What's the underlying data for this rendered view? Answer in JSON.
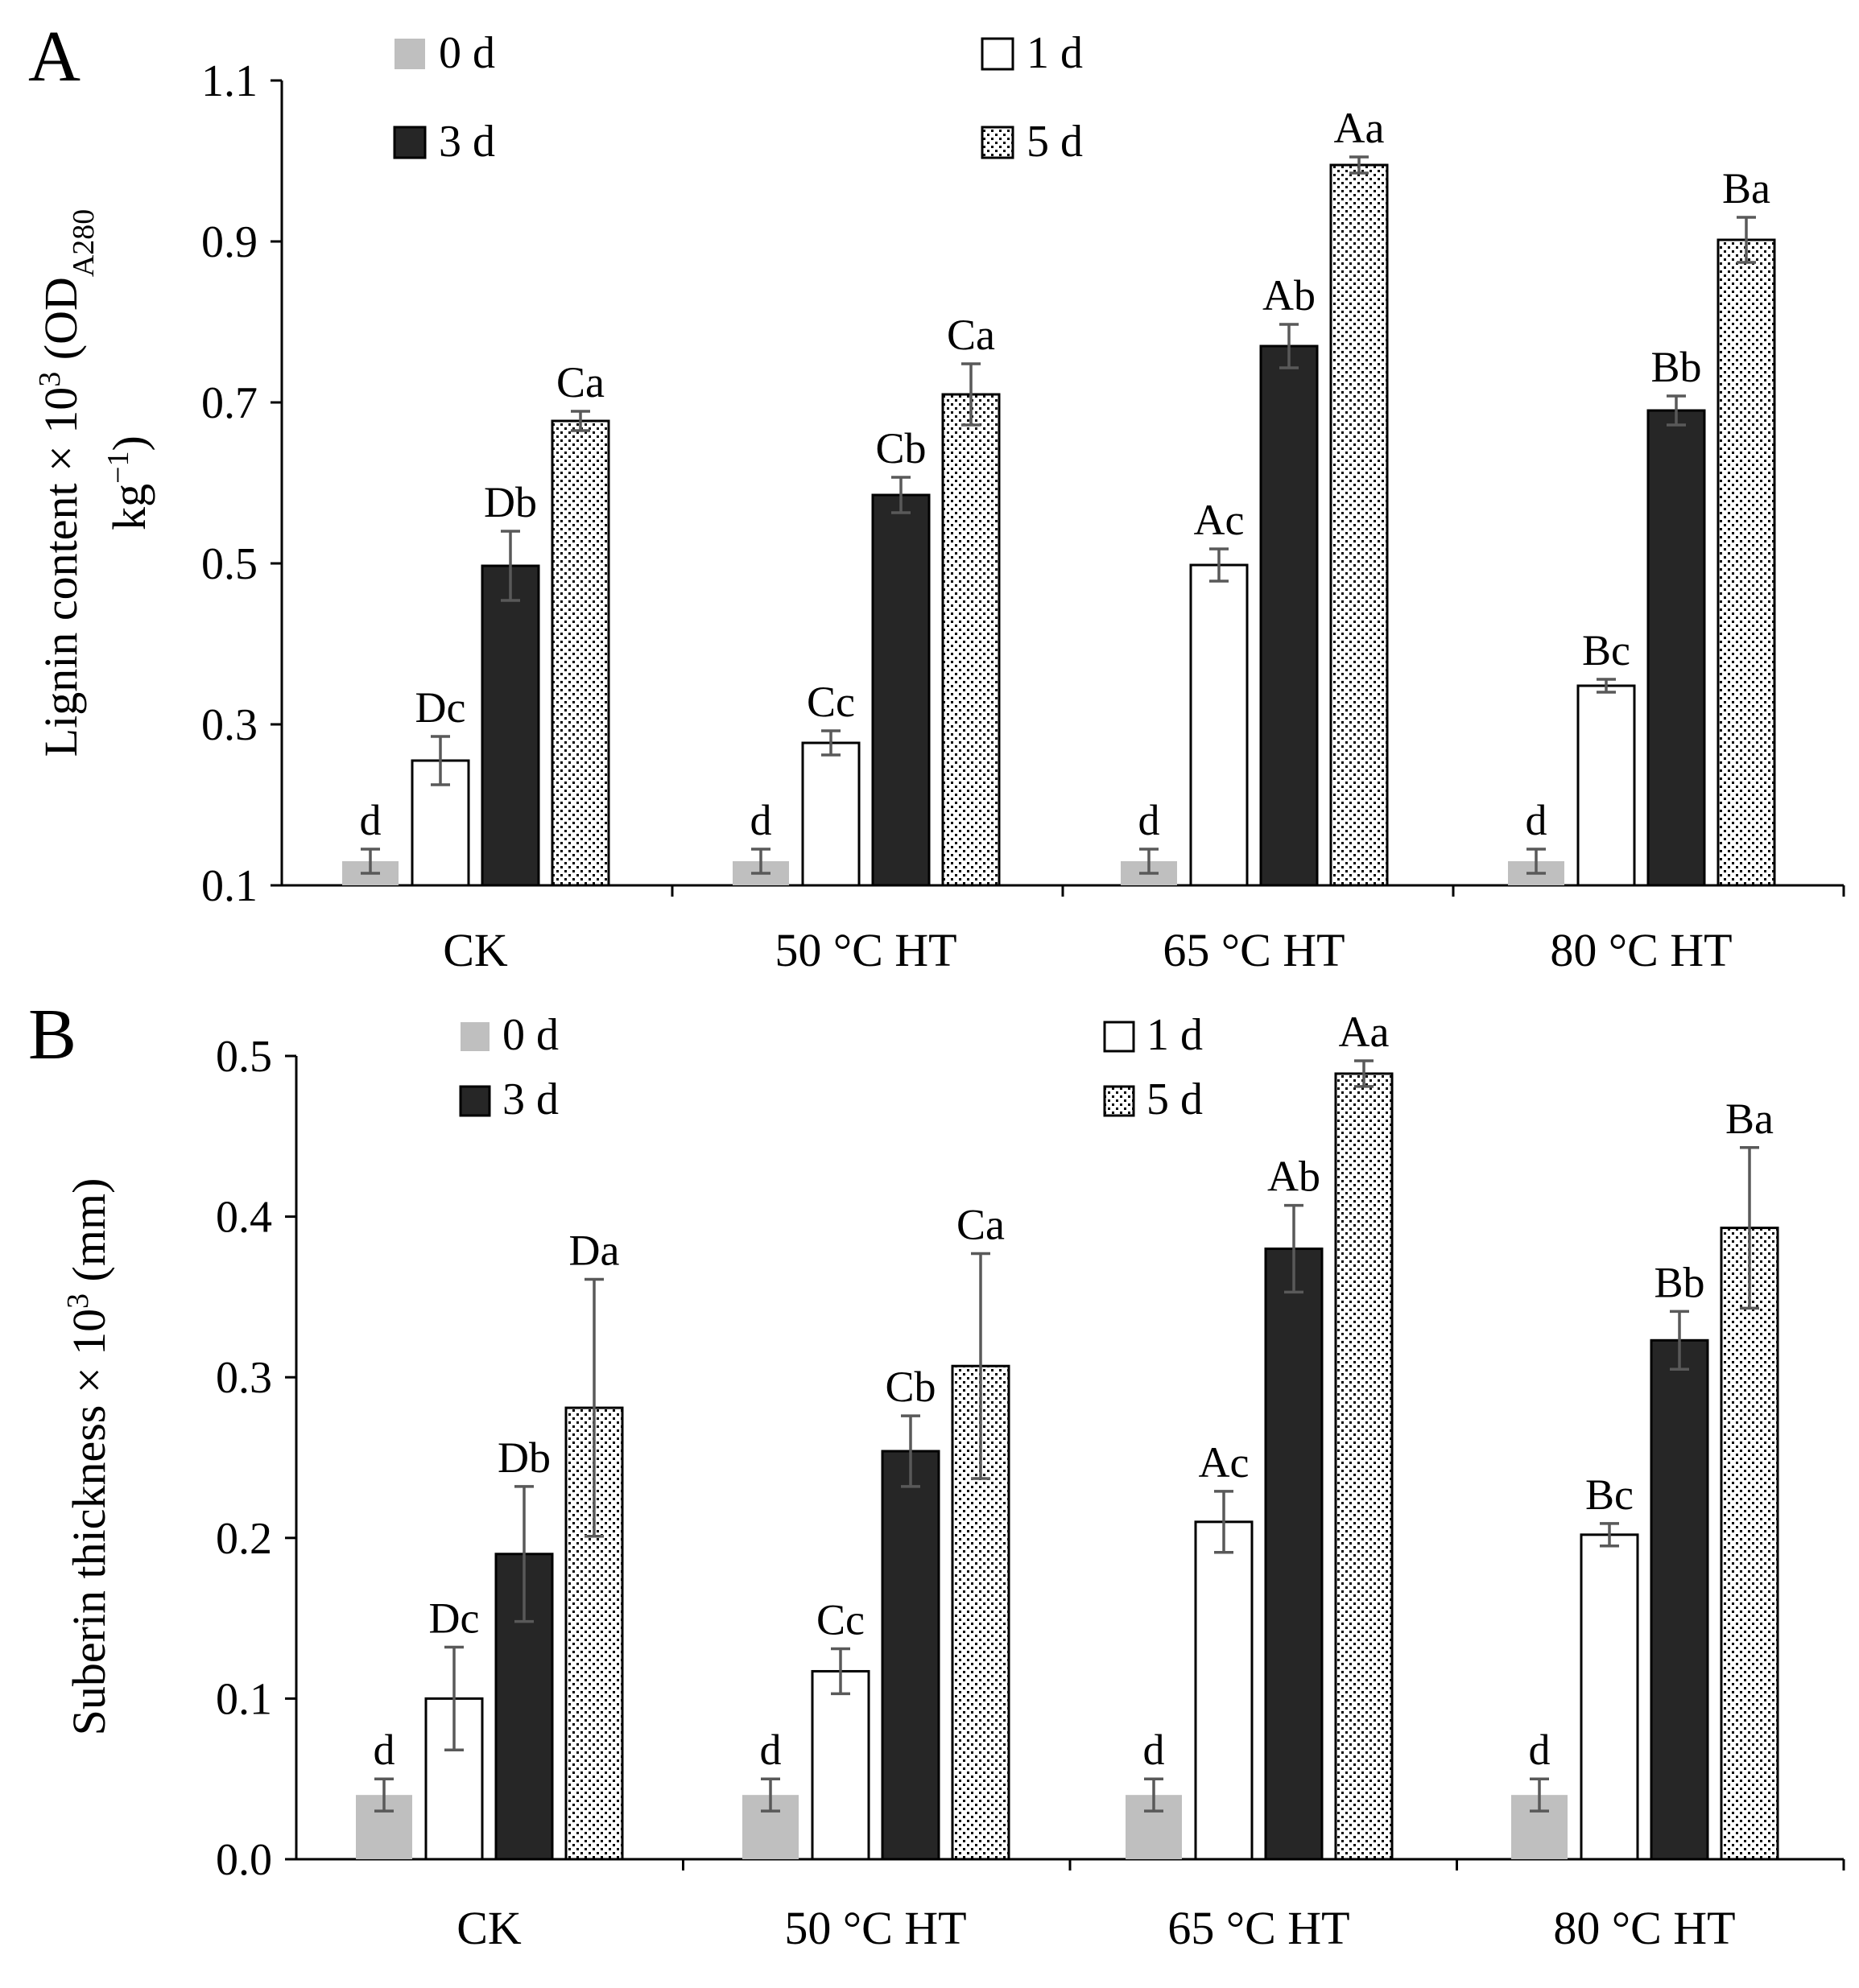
{
  "colors": {
    "day0": "#bfbfbf",
    "day1": "#ffffff",
    "day3": "#262626",
    "day5_pattern": "dots",
    "errorbar": "#595959",
    "axis": "#000000"
  },
  "chart_data": [
    {
      "type": "bar",
      "panel_label": "A",
      "ylabel_main": "Lignin content × 10",
      "ylabel_sup": "3",
      "ylabel_unit_open": " (OD",
      "ylabel_unit_sub": "A280",
      "ylabel_line2": "kg",
      "ylabel_line2_sup": "−1",
      "ylabel_line2_close": ")",
      "ylim": [
        0.1,
        1.1
      ],
      "yticks": [
        "0.1",
        "0.3",
        "0.5",
        "0.7",
        "0.9",
        "1.1"
      ],
      "categories": [
        "CK",
        "50 °C HT",
        "65 °C HT",
        "80 °C HT"
      ],
      "legend": [
        "0 d",
        "1 d",
        "3 d",
        "5 d"
      ],
      "legend_placement": "top-left",
      "series": [
        {
          "name": "0 d",
          "values": [
            0.13,
            0.13,
            0.13,
            0.13
          ],
          "errors": [
            0.015,
            0.015,
            0.015,
            0.015
          ],
          "labels": [
            "d",
            "d",
            "d",
            "d"
          ]
        },
        {
          "name": "1 d",
          "values": [
            0.255,
            0.277,
            0.498,
            0.348
          ],
          "errors": [
            0.03,
            0.015,
            0.02,
            0.008
          ],
          "labels": [
            "Dc",
            "Cc",
            "Ac",
            "Bc"
          ]
        },
        {
          "name": "3 d",
          "values": [
            0.497,
            0.585,
            0.77,
            0.69
          ],
          "errors": [
            0.043,
            0.022,
            0.027,
            0.018
          ],
          "labels": [
            "Db",
            "Cb",
            "Ab",
            "Bb"
          ]
        },
        {
          "name": "5 d",
          "values": [
            0.677,
            0.71,
            0.995,
            0.902
          ],
          "errors": [
            0.012,
            0.038,
            0.01,
            0.028
          ],
          "labels": [
            "Ca",
            "Ca",
            "Aa",
            "Ba"
          ]
        }
      ]
    },
    {
      "type": "bar",
      "panel_label": "B",
      "ylabel_main": "Suberin thickness × 10",
      "ylabel_sup": "3",
      "ylabel_unit_open": " (mm)",
      "ylim": [
        0.0,
        0.5
      ],
      "yticks": [
        "0.0",
        "0.1",
        "0.2",
        "0.3",
        "0.4",
        "0.5"
      ],
      "categories": [
        "CK",
        "50 °C HT",
        "65 °C HT",
        "80 °C HT"
      ],
      "legend": [
        "0 d",
        "1 d",
        "3 d",
        "5 d"
      ],
      "legend_placement": "top-left",
      "series": [
        {
          "name": "0 d",
          "values": [
            0.04,
            0.04,
            0.04,
            0.04
          ],
          "errors": [
            0.01,
            0.01,
            0.01,
            0.01
          ],
          "labels": [
            "d",
            "d",
            "d",
            "d"
          ]
        },
        {
          "name": "1 d",
          "values": [
            0.1,
            0.117,
            0.21,
            0.202
          ],
          "errors": [
            0.032,
            0.014,
            0.019,
            0.007
          ],
          "labels": [
            "Dc",
            "Cc",
            "Ac",
            "Bc"
          ]
        },
        {
          "name": "3 d",
          "values": [
            0.19,
            0.254,
            0.38,
            0.323
          ],
          "errors": [
            0.042,
            0.022,
            0.027,
            0.018
          ],
          "labels": [
            "Db",
            "Cb",
            "Ab",
            "Bb"
          ]
        },
        {
          "name": "5 d",
          "values": [
            0.281,
            0.307,
            0.489,
            0.393
          ],
          "errors": [
            0.08,
            0.07,
            0.008,
            0.05
          ],
          "labels": [
            "Da",
            "Ca",
            "Aa",
            "Ba"
          ]
        }
      ]
    }
  ]
}
